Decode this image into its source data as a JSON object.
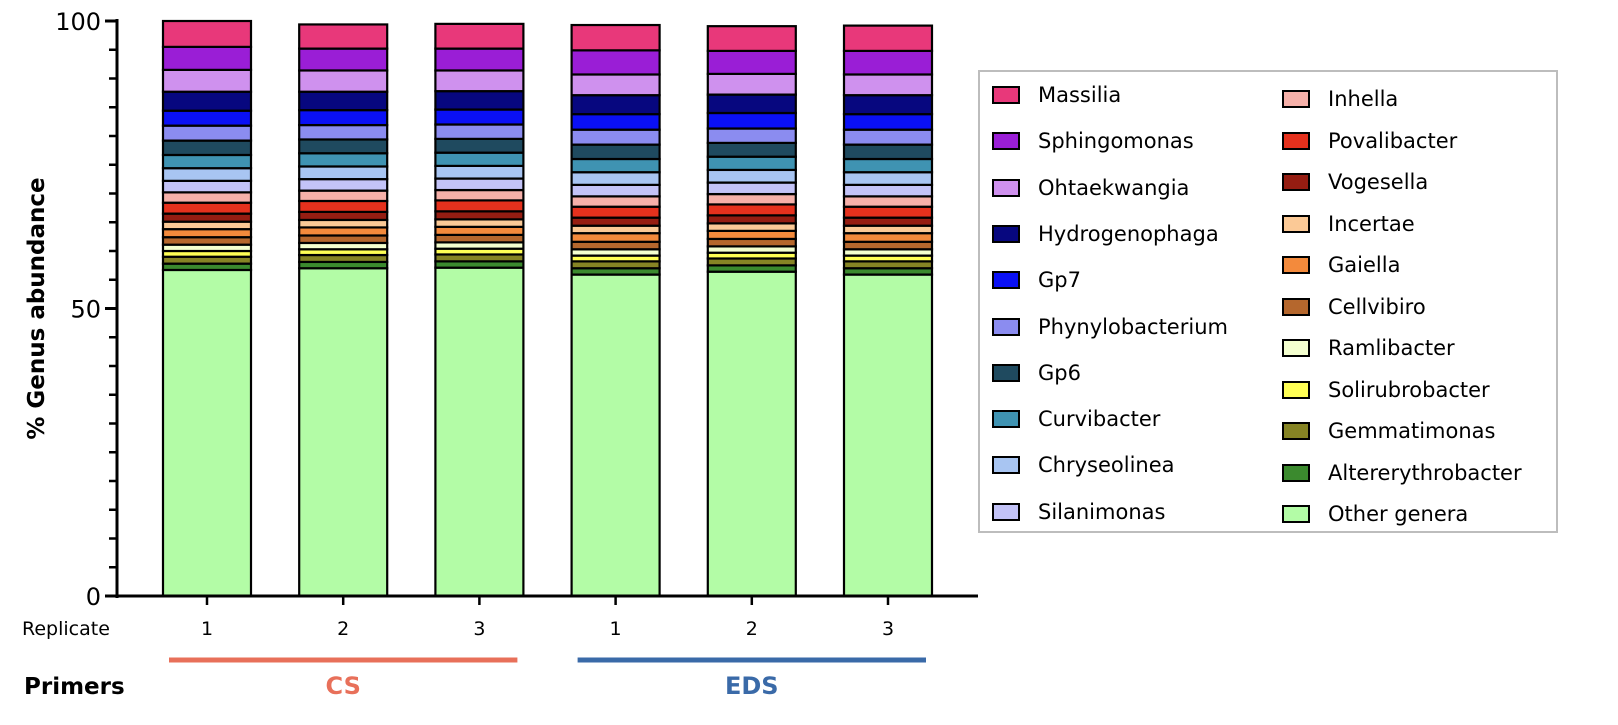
{
  "chart_data": {
    "type": "bar",
    "stacked": true,
    "ylabel": "% Genus abundance",
    "ylim": [
      0,
      100
    ],
    "yticks": [
      "0",
      "50",
      "100"
    ],
    "x_row_label": "Replicate",
    "categories": [
      "1",
      "2",
      "3",
      "1",
      "2",
      "3"
    ],
    "group_row_label": "Primers",
    "groups": [
      {
        "name": "CS",
        "color": "#e8705a"
      },
      {
        "name": "EDS",
        "color": "#3a6aa8"
      }
    ],
    "legend_position": "right",
    "series": [
      {
        "name": "Other genera",
        "color": "#b3fca6",
        "values": [
          56.7,
          57.0,
          57.1,
          55.9,
          56.4,
          55.9
        ]
      },
      {
        "name": "Altererythrobacter",
        "color": "#3b8a2e",
        "values": [
          1.1,
          1.1,
          1.1,
          1.1,
          1.1,
          1.1
        ]
      },
      {
        "name": "Gemmatimonas",
        "color": "#868424",
        "values": [
          1.2,
          1.2,
          1.2,
          1.2,
          1.2,
          1.2
        ]
      },
      {
        "name": "Solirubrobacter",
        "color": "#ffff55",
        "values": [
          1.0,
          1.0,
          1.0,
          1.0,
          1.0,
          1.0
        ]
      },
      {
        "name": "Ramlibacter",
        "color": "#f4ffcf",
        "values": [
          1.1,
          1.1,
          1.1,
          1.1,
          1.1,
          1.1
        ]
      },
      {
        "name": "Cellvibiro",
        "color": "#b5672d",
        "values": [
          1.3,
          1.3,
          1.3,
          1.3,
          1.3,
          1.3
        ]
      },
      {
        "name": "Gaiella",
        "color": "#f38a3c",
        "values": [
          1.4,
          1.4,
          1.4,
          1.5,
          1.4,
          1.5
        ]
      },
      {
        "name": "Incertae",
        "color": "#fbc996",
        "values": [
          1.3,
          1.3,
          1.3,
          1.3,
          1.3,
          1.3
        ]
      },
      {
        "name": "Vogesella",
        "color": "#951d12",
        "values": [
          1.4,
          1.4,
          1.4,
          1.4,
          1.4,
          1.4
        ]
      },
      {
        "name": "Povalibacter",
        "color": "#e5311d",
        "values": [
          1.9,
          1.9,
          1.9,
          1.9,
          1.9,
          1.9
        ]
      },
      {
        "name": "Inhella",
        "color": "#f6b0a9",
        "values": [
          1.8,
          1.8,
          1.8,
          1.8,
          1.8,
          1.8
        ]
      },
      {
        "name": "Silanimonas",
        "color": "#c3c3f7",
        "values": [
          2.0,
          2.0,
          2.0,
          2.0,
          2.0,
          2.0
        ]
      },
      {
        "name": "Chryseolinea",
        "color": "#a8c5f2",
        "values": [
          2.2,
          2.2,
          2.2,
          2.2,
          2.2,
          2.2
        ]
      },
      {
        "name": "Curvibacter",
        "color": "#3f93b2",
        "values": [
          2.3,
          2.3,
          2.3,
          2.3,
          2.3,
          2.3
        ]
      },
      {
        "name": "Gp6",
        "color": "#1f4a5f",
        "values": [
          2.5,
          2.4,
          2.4,
          2.5,
          2.4,
          2.5
        ]
      },
      {
        "name": "Phynylobacterium",
        "color": "#8b8cf0",
        "values": [
          2.6,
          2.5,
          2.5,
          2.6,
          2.5,
          2.6
        ]
      },
      {
        "name": "Gp7",
        "color": "#0a10f5",
        "values": [
          2.6,
          2.6,
          2.6,
          2.7,
          2.7,
          2.7
        ]
      },
      {
        "name": "Hydrogenophaga",
        "color": "#07077f",
        "values": [
          3.3,
          3.2,
          3.2,
          3.3,
          3.2,
          3.3
        ]
      },
      {
        "name": "Ohtaekwangia",
        "color": "#cf91ee",
        "values": [
          3.8,
          3.7,
          3.6,
          3.6,
          3.6,
          3.6
        ]
      },
      {
        "name": "Sphingomonas",
        "color": "#9a1ed6",
        "values": [
          4.0,
          3.8,
          3.8,
          4.2,
          4.0,
          4.1
        ]
      },
      {
        "name": "Massilia",
        "color": "#e8387a",
        "values": [
          4.5,
          4.2,
          4.3,
          4.4,
          4.3,
          4.4
        ]
      }
    ],
    "legend_order": [
      "Massilia",
      "Sphingomonas",
      "Ohtaekwangia",
      "Hydrogenophaga",
      "Gp7",
      "Phynylobacterium",
      "Gp6",
      "Curvibacter",
      "Chryseolinea",
      "Silanimonas",
      "Inhella",
      "Povalibacter",
      "Vogesella",
      "Incertae",
      "Gaiella",
      "Cellvibiro",
      "Ramlibacter",
      "Solirubrobacter",
      "Gemmatimonas",
      "Altererythrobacter",
      "Other genera"
    ]
  }
}
